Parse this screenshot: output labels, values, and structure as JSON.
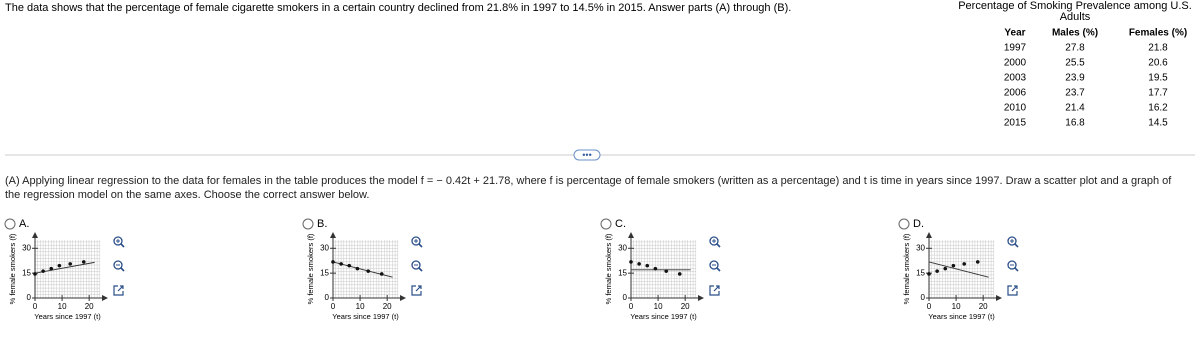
{
  "question": "The data shows that the percentage of female cigarette smokers in a certain country declined from 21.8% in 1997 to 14.5% in 2015. Answer parts (A) through (B).",
  "table": {
    "title": "Percentage of Smoking Prevalence among U.S. Adults",
    "columns": [
      "Year",
      "Males (%)",
      "Females (%)"
    ],
    "rows": [
      [
        "1997",
        "27.8",
        "21.8"
      ],
      [
        "2000",
        "25.5",
        "20.6"
      ],
      [
        "2003",
        "23.9",
        "19.5"
      ],
      [
        "2006",
        "23.7",
        "17.7"
      ],
      [
        "2010",
        "21.4",
        "16.2"
      ],
      [
        "2015",
        "16.8",
        "14.5"
      ]
    ]
  },
  "part_a": "(A) Applying linear regression to the data for females in the table produces the model f = − 0.42t + 21.78, where f is percentage of female smokers (written as a percentage) and t is time in years since 1997. Draw a scatter plot and a graph of the regression model on the same axes. Choose the correct answer below.",
  "options": [
    {
      "label": "A.",
      "chart": {
        "type": "scatter",
        "x_label": "Years since 1997 (t)",
        "y_label": "% female smokers (f)",
        "x": [
          0,
          3,
          6,
          9,
          13,
          18
        ],
        "values": [
          14.5,
          16.2,
          17.7,
          19.5,
          20.6,
          21.8
        ],
        "line_x": [
          0,
          22
        ],
        "line_values": [
          15,
          21.5
        ],
        "xlim": [
          0,
          24
        ],
        "ylim": [
          0,
          35
        ],
        "xticks": [
          0,
          10,
          20
        ],
        "yticks": [
          0,
          15,
          30
        ]
      }
    },
    {
      "label": "B.",
      "chart": {
        "type": "scatter",
        "x_label": "Years since 1997 (t)",
        "y_label": "% female smokers (f)",
        "x": [
          0,
          3,
          6,
          9,
          13,
          18
        ],
        "values": [
          21.8,
          20.6,
          19.5,
          17.7,
          16.2,
          14.5
        ],
        "line_x": [
          0,
          22
        ],
        "line_values": [
          21.78,
          12.54
        ],
        "xlim": [
          0,
          24
        ],
        "ylim": [
          0,
          35
        ],
        "xticks": [
          0,
          10,
          20
        ],
        "yticks": [
          0,
          15,
          30
        ]
      }
    },
    {
      "label": "C.",
      "chart": {
        "type": "scatter",
        "x_label": "Years since 1997 (t)",
        "y_label": "% female smokers (f)",
        "x": [
          0,
          3,
          6,
          9,
          13,
          18
        ],
        "values": [
          21.8,
          20.6,
          19.5,
          17.7,
          16.2,
          14.5
        ],
        "line_x": [
          0,
          22
        ],
        "line_values": [
          17,
          17
        ],
        "xlim": [
          0,
          24
        ],
        "ylim": [
          0,
          35
        ],
        "xticks": [
          0,
          10,
          20
        ],
        "yticks": [
          0,
          15,
          30
        ]
      }
    },
    {
      "label": "D.",
      "chart": {
        "type": "scatter",
        "x_label": "Years since 1997 (t)",
        "y_label": "% female smokers (f)",
        "x": [
          0,
          3,
          6,
          9,
          13,
          18
        ],
        "values": [
          14.5,
          16.2,
          17.7,
          19.5,
          20.6,
          21.8
        ],
        "line_x": [
          0,
          22
        ],
        "line_values": [
          21.78,
          12.54
        ],
        "xlim": [
          0,
          24
        ],
        "ylim": [
          0,
          35
        ],
        "xticks": [
          0,
          10,
          20
        ],
        "yticks": [
          0,
          15,
          30
        ]
      }
    }
  ]
}
